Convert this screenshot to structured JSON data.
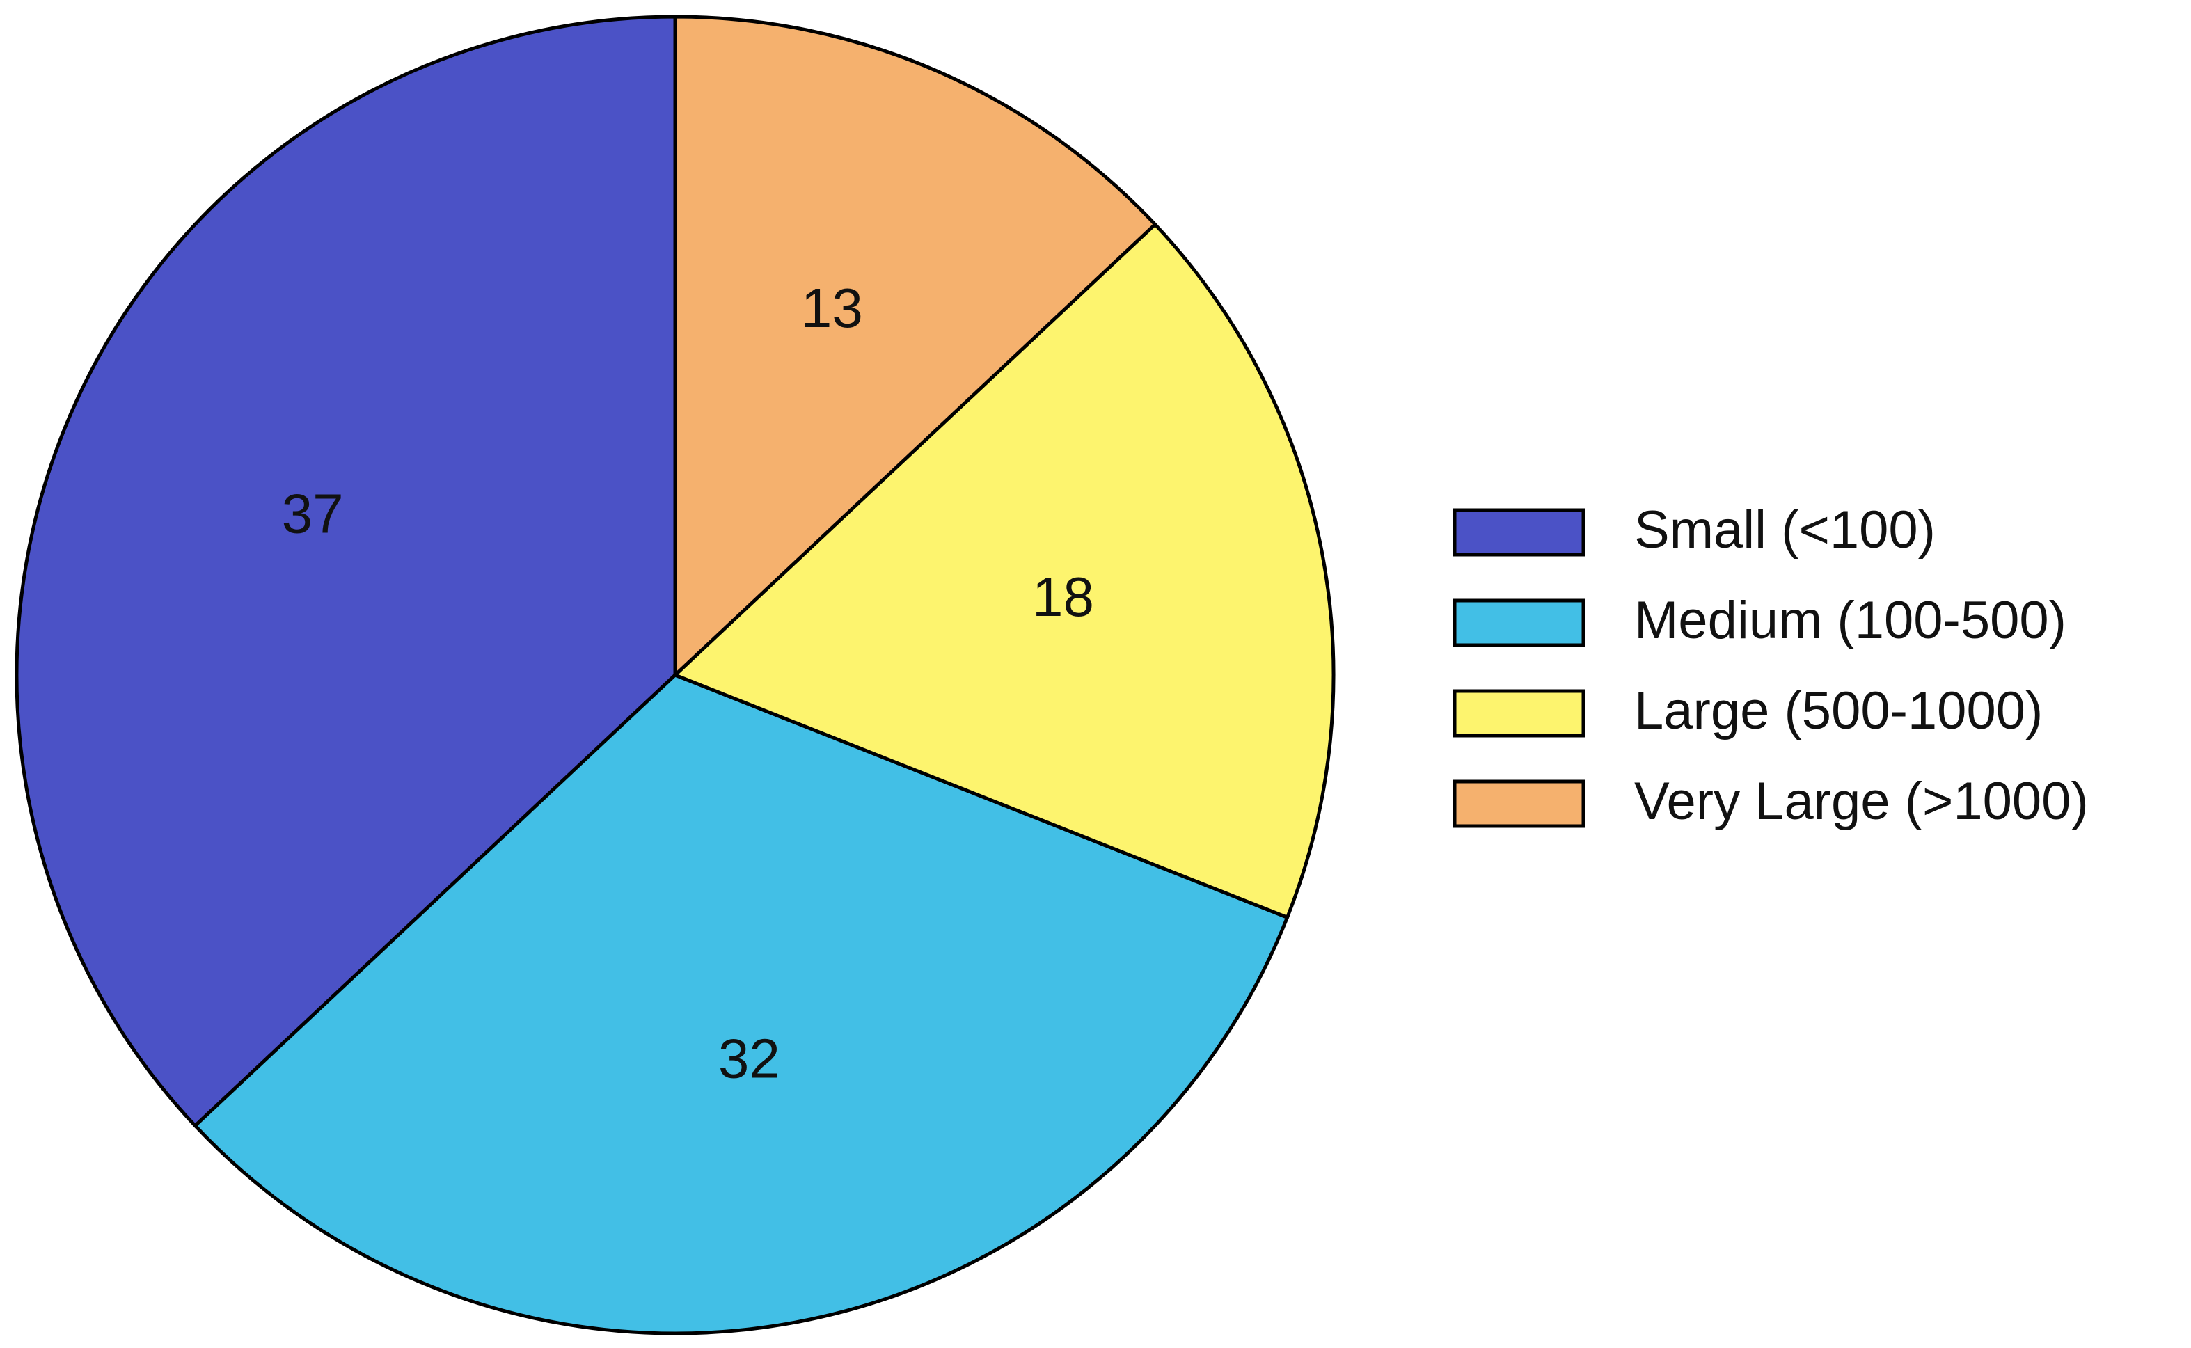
{
  "chart_data": {
    "type": "pie",
    "categories": [
      "Small (<100)",
      "Medium (100-500)",
      "Large (500-1000)",
      "Very Large (>1000)"
    ],
    "values": [
      37,
      32,
      18,
      13
    ],
    "colors": [
      "#4b52c6",
      "#42bfe6",
      "#fdf46e",
      "#f5b16e"
    ],
    "start": "top",
    "direction": "counterclockwise",
    "legend": "right"
  }
}
